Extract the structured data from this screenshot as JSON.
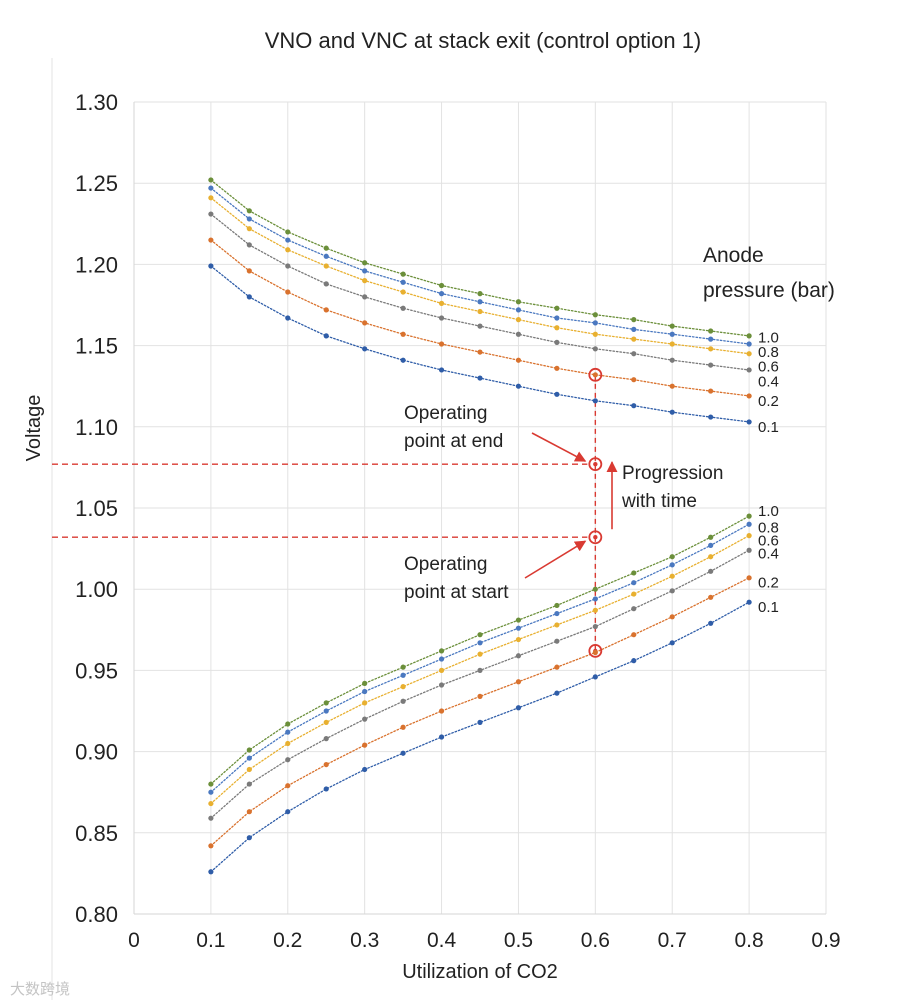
{
  "chart_data": {
    "type": "scatter",
    "title": "VNO and VNC at stack exit (control option 1)",
    "xlabel": "Utilization of CO2",
    "ylabel": "Voltage",
    "xlim": [
      0,
      0.9
    ],
    "ylim": [
      0.8,
      1.3
    ],
    "xticks": [
      "0",
      "0.1",
      "0.2",
      "0.3",
      "0.4",
      "0.5",
      "0.6",
      "0.7",
      "0.8",
      "0.9"
    ],
    "yticks": [
      "0.80",
      "0.85",
      "0.90",
      "0.95",
      "1.00",
      "1.05",
      "1.10",
      "1.15",
      "1.20",
      "1.25",
      "1.30"
    ],
    "grid": true,
    "legend_title_line1": "Anode",
    "legend_title_line2": "pressure (bar)",
    "x": [
      0.1,
      0.15,
      0.2,
      0.25,
      0.3,
      0.35,
      0.4,
      0.45,
      0.5,
      0.55,
      0.6,
      0.65,
      0.7,
      0.75,
      0.8
    ],
    "series": [
      {
        "name": "VNO 1.0",
        "group": "upper",
        "pressure": "1.0",
        "color": "#6b8f3a",
        "values": [
          1.252,
          1.233,
          1.22,
          1.21,
          1.201,
          1.194,
          1.187,
          1.182,
          1.177,
          1.173,
          1.169,
          1.166,
          1.162,
          1.159,
          1.156
        ]
      },
      {
        "name": "VNO 0.8",
        "group": "upper",
        "pressure": "0.8",
        "color": "#4a78c0",
        "values": [
          1.247,
          1.228,
          1.215,
          1.205,
          1.196,
          1.189,
          1.182,
          1.177,
          1.172,
          1.167,
          1.164,
          1.16,
          1.157,
          1.154,
          1.151
        ]
      },
      {
        "name": "VNO 0.6",
        "group": "upper",
        "pressure": "0.6",
        "color": "#e8b030",
        "values": [
          1.241,
          1.222,
          1.209,
          1.199,
          1.19,
          1.183,
          1.176,
          1.171,
          1.166,
          1.161,
          1.157,
          1.154,
          1.151,
          1.148,
          1.145
        ]
      },
      {
        "name": "VNO 0.4",
        "group": "upper",
        "pressure": "0.4",
        "color": "#7a7a7a",
        "values": [
          1.231,
          1.212,
          1.199,
          1.188,
          1.18,
          1.173,
          1.167,
          1.162,
          1.157,
          1.152,
          1.148,
          1.145,
          1.141,
          1.138,
          1.135
        ]
      },
      {
        "name": "VNO 0.2",
        "group": "upper",
        "pressure": "0.2",
        "color": "#d9722e",
        "values": [
          1.215,
          1.196,
          1.183,
          1.172,
          1.164,
          1.157,
          1.151,
          1.146,
          1.141,
          1.136,
          1.132,
          1.129,
          1.125,
          1.122,
          1.119
        ]
      },
      {
        "name": "VNO 0.1",
        "group": "upper",
        "pressure": "0.1",
        "color": "#2f5da8",
        "values": [
          1.199,
          1.18,
          1.167,
          1.156,
          1.148,
          1.141,
          1.135,
          1.13,
          1.125,
          1.12,
          1.116,
          1.113,
          1.109,
          1.106,
          1.103
        ]
      },
      {
        "name": "VNC 1.0",
        "group": "lower",
        "pressure": "1.0",
        "color": "#6b8f3a",
        "values": [
          0.88,
          0.901,
          0.917,
          0.93,
          0.942,
          0.952,
          0.962,
          0.972,
          0.981,
          0.99,
          1.0,
          1.01,
          1.02,
          1.032,
          1.045
        ]
      },
      {
        "name": "VNC 0.8",
        "group": "lower",
        "pressure": "0.8",
        "color": "#4a78c0",
        "values": [
          0.875,
          0.896,
          0.912,
          0.925,
          0.937,
          0.947,
          0.957,
          0.967,
          0.976,
          0.985,
          0.994,
          1.004,
          1.015,
          1.027,
          1.04
        ]
      },
      {
        "name": "VNC 0.6",
        "group": "lower",
        "pressure": "0.6",
        "color": "#e8b030",
        "values": [
          0.868,
          0.889,
          0.905,
          0.918,
          0.93,
          0.94,
          0.95,
          0.96,
          0.969,
          0.978,
          0.987,
          0.997,
          1.008,
          1.02,
          1.033
        ]
      },
      {
        "name": "VNC 0.4",
        "group": "lower",
        "pressure": "0.4",
        "color": "#7a7a7a",
        "values": [
          0.859,
          0.88,
          0.895,
          0.908,
          0.92,
          0.931,
          0.941,
          0.95,
          0.959,
          0.968,
          0.977,
          0.988,
          0.999,
          1.011,
          1.024
        ]
      },
      {
        "name": "VNC 0.2",
        "group": "lower",
        "pressure": "0.2",
        "color": "#d9722e",
        "values": [
          0.842,
          0.863,
          0.879,
          0.892,
          0.904,
          0.915,
          0.925,
          0.934,
          0.943,
          0.952,
          0.961,
          0.972,
          0.983,
          0.995,
          1.007
        ]
      },
      {
        "name": "VNC 0.1",
        "group": "lower",
        "pressure": "0.1",
        "color": "#2f5da8",
        "values": [
          0.826,
          0.847,
          0.863,
          0.877,
          0.889,
          0.899,
          0.909,
          0.918,
          0.927,
          0.936,
          0.946,
          0.956,
          0.967,
          0.979,
          0.992
        ]
      }
    ],
    "series_labels": {
      "upper": [
        {
          "text": "1.0",
          "y": 1.155
        },
        {
          "text": "0.8",
          "y": 1.146
        },
        {
          "text": "0.6",
          "y": 1.137
        },
        {
          "text": "0.4",
          "y": 1.128
        },
        {
          "text": "0.2",
          "y": 1.116
        },
        {
          "text": "0.1",
          "y": 1.1
        }
      ],
      "lower": [
        {
          "text": "1.0",
          "y": 1.048
        },
        {
          "text": "0.8",
          "y": 1.038
        },
        {
          "text": "0.6",
          "y": 1.03
        },
        {
          "text": "0.4",
          "y": 1.022
        },
        {
          "text": "0.2",
          "y": 1.004
        },
        {
          "text": "0.1",
          "y": 0.989
        }
      ]
    },
    "annotations": {
      "color": "#d93a32",
      "highlight_x": 0.6,
      "marked_points": [
        {
          "x": 0.6,
          "y": 1.132
        },
        {
          "x": 0.6,
          "y": 1.077
        },
        {
          "x": 0.6,
          "y": 1.032
        },
        {
          "x": 0.6,
          "y": 0.962
        }
      ],
      "end_level": 1.077,
      "start_level": 1.032,
      "end_label_line1": "Operating",
      "end_label_line2": "point at end",
      "start_label_line1": "Operating",
      "start_label_line2": "point at start",
      "progression_line1": "Progression",
      "progression_line2": "with time"
    }
  },
  "watermark": "大数跨境"
}
